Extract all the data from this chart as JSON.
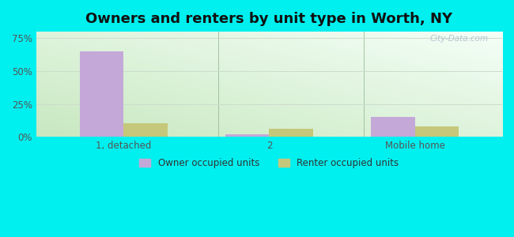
{
  "title": "Owners and renters by unit type in Worth, NY",
  "categories": [
    "1, detached",
    "2",
    "Mobile home"
  ],
  "owner_values": [
    65.0,
    2.0,
    15.0
  ],
  "renter_values": [
    10.0,
    6.0,
    8.0
  ],
  "owner_color": "#c4a8d8",
  "renter_color": "#c5c87a",
  "background_color": "#00efef",
  "yticks": [
    0,
    25,
    50,
    75
  ],
  "ylim": [
    0,
    80
  ],
  "bar_width": 0.3,
  "legend_owner": "Owner occupied units",
  "legend_renter": "Renter occupied units",
  "title_fontsize": 13,
  "watermark": "City-Data.com",
  "grad_bottom_left": "#c8e8c0",
  "grad_top_right": "#f5fff8"
}
